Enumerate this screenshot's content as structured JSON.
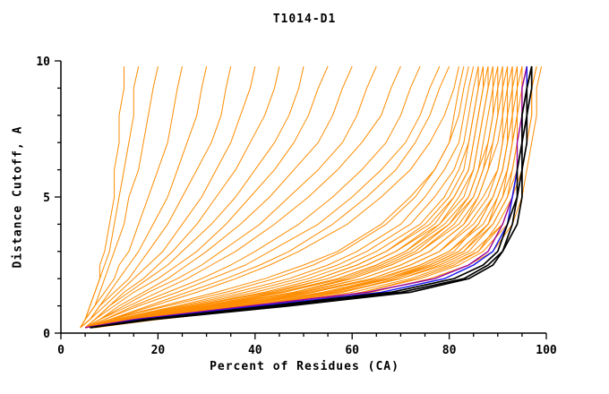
{
  "title": "T1014-D1",
  "axes": {
    "xlabel": "Percent of Residues (CA)",
    "ylabel": "Distance Cutoff, A"
  },
  "colors": {
    "predictions": "#FF8C00",
    "magenta_model": "#990099",
    "blue_model": "#1515EE",
    "best_model": "#000000",
    "axis": "#000000"
  },
  "chart_data": {
    "type": "line",
    "title": "T1014-D1",
    "xlabel": "Percent of Residues (CA)",
    "ylabel": "Distance Cutoff, A",
    "xlim": [
      0,
      100
    ],
    "ylim": [
      0,
      10
    ],
    "x_major_ticks": [
      0,
      20,
      40,
      60,
      80,
      100
    ],
    "x_minor_step": 5,
    "y_major_ticks": [
      0,
      5,
      10
    ],
    "y_minor_step": 1,
    "legend": "none",
    "grid": false,
    "cutoffs": [
      0.2,
      0.5,
      1.0,
      1.5,
      2.0,
      2.5,
      3.0,
      4.0,
      5.0,
      6.0,
      7.0,
      8.0,
      9.0,
      9.8
    ],
    "groups": [
      {
        "name": "prediction",
        "color": "#FF8C00",
        "width": 1,
        "curves": [
          [
            4,
            5,
            6,
            7,
            8,
            8,
            9,
            10,
            11,
            11,
            12,
            12,
            13,
            13
          ],
          [
            4,
            5,
            6,
            7,
            8,
            9,
            10,
            11,
            12,
            13,
            14,
            15,
            15,
            16
          ],
          [
            4,
            5,
            7,
            8,
            9,
            10,
            11,
            13,
            14,
            16,
            17,
            18,
            19,
            20
          ],
          [
            4,
            5,
            7,
            9,
            11,
            12,
            14,
            16,
            18,
            20,
            22,
            23,
            24,
            25
          ],
          [
            4,
            6,
            8,
            10,
            12,
            14,
            16,
            19,
            22,
            24,
            26,
            28,
            29,
            30
          ],
          [
            4,
            6,
            8,
            11,
            14,
            16,
            18,
            22,
            25,
            28,
            31,
            33,
            34,
            35
          ],
          [
            4,
            6,
            9,
            12,
            15,
            18,
            21,
            25,
            29,
            32,
            35,
            37,
            39,
            40
          ],
          [
            5,
            7,
            10,
            13,
            17,
            20,
            23,
            28,
            32,
            36,
            39,
            42,
            44,
            45
          ],
          [
            5,
            7,
            10,
            14,
            18,
            22,
            25,
            31,
            36,
            40,
            44,
            47,
            49,
            50
          ],
          [
            5,
            7,
            11,
            15,
            20,
            24,
            28,
            34,
            39,
            44,
            48,
            51,
            53,
            55
          ],
          [
            5,
            8,
            12,
            17,
            22,
            26,
            30,
            37,
            43,
            48,
            53,
            56,
            58,
            60
          ],
          [
            5,
            8,
            13,
            18,
            24,
            29,
            33,
            41,
            47,
            53,
            58,
            61,
            63,
            65
          ],
          [
            5,
            8,
            14,
            20,
            26,
            31,
            36,
            44,
            51,
            57,
            62,
            66,
            68,
            70
          ],
          [
            5,
            9,
            15,
            22,
            29,
            35,
            40,
            49,
            56,
            62,
            67,
            70,
            72,
            74
          ],
          [
            5,
            9,
            16,
            24,
            31,
            38,
            43,
            53,
            60,
            66,
            71,
            74,
            76,
            78
          ],
          [
            5,
            10,
            18,
            26,
            34,
            41,
            47,
            56,
            63,
            69,
            73,
            76,
            78,
            80
          ],
          [
            5,
            10,
            19,
            28,
            36,
            43,
            49,
            59,
            66,
            72,
            76,
            79,
            81,
            82
          ],
          [
            5,
            10,
            21,
            32,
            42,
            50,
            57,
            66,
            72,
            77,
            80,
            81,
            82,
            83
          ],
          [
            5,
            10,
            22,
            34,
            44,
            52,
            58,
            67,
            73,
            77,
            80,
            82,
            83,
            84
          ],
          [
            5,
            11,
            24,
            36,
            47,
            55,
            61,
            70,
            75,
            79,
            82,
            83,
            84,
            85
          ],
          [
            5,
            11,
            25,
            38,
            49,
            57,
            63,
            72,
            77,
            81,
            83,
            84,
            85,
            86
          ],
          [
            6,
            13,
            28,
            42,
            53,
            61,
            67,
            75,
            80,
            83,
            84,
            85,
            86,
            86
          ],
          [
            5,
            11,
            26,
            40,
            51,
            59,
            65,
            74,
            79,
            82,
            84,
            85,
            86,
            87
          ],
          [
            6,
            14,
            30,
            44,
            55,
            63,
            69,
            77,
            81,
            84,
            85,
            86,
            87,
            87
          ],
          [
            5,
            12,
            27,
            42,
            53,
            61,
            67,
            76,
            81,
            84,
            85,
            86,
            87,
            88
          ],
          [
            6,
            14,
            31,
            46,
            57,
            65,
            71,
            78,
            83,
            85,
            86,
            87,
            88,
            88
          ],
          [
            5,
            12,
            28,
            43,
            55,
            63,
            69,
            78,
            82,
            85,
            86,
            87,
            88,
            89
          ],
          [
            6,
            15,
            33,
            48,
            59,
            67,
            73,
            80,
            84,
            86,
            87,
            88,
            89,
            89
          ],
          [
            5,
            12,
            29,
            45,
            57,
            65,
            71,
            79,
            84,
            86,
            88,
            89,
            89,
            90
          ],
          [
            6,
            14,
            32,
            48,
            60,
            68,
            74,
            81,
            85,
            87,
            88,
            89,
            90,
            90
          ],
          [
            5,
            13,
            30,
            46,
            58,
            66,
            72,
            80,
            85,
            87,
            89,
            90,
            90,
            91
          ],
          [
            6,
            15,
            34,
            50,
            62,
            70,
            76,
            83,
            86,
            88,
            89,
            90,
            91,
            91
          ],
          [
            5,
            13,
            31,
            48,
            60,
            68,
            74,
            82,
            86,
            88,
            90,
            91,
            91,
            92
          ],
          [
            6,
            16,
            36,
            52,
            64,
            72,
            78,
            84,
            88,
            90,
            91,
            91,
            92,
            92
          ],
          [
            5,
            14,
            32,
            49,
            62,
            70,
            76,
            83,
            87,
            90,
            91,
            92,
            92,
            93
          ],
          [
            6,
            16,
            37,
            54,
            66,
            74,
            80,
            86,
            89,
            91,
            92,
            92,
            93,
            93
          ],
          [
            7,
            18,
            40,
            56,
            67,
            75,
            81,
            86,
            89,
            91,
            92,
            93,
            93,
            93
          ],
          [
            5,
            14,
            33,
            51,
            64,
            72,
            78,
            85,
            89,
            91,
            92,
            93,
            93,
            94
          ],
          [
            6,
            17,
            38,
            56,
            68,
            76,
            82,
            88,
            90,
            92,
            93,
            93,
            94,
            94
          ],
          [
            7,
            19,
            42,
            58,
            69,
            77,
            83,
            88,
            91,
            92,
            93,
            94,
            94,
            94
          ],
          [
            5,
            15,
            34,
            52,
            65,
            74,
            80,
            87,
            90,
            92,
            93,
            94,
            94,
            95
          ],
          [
            6,
            18,
            40,
            58,
            70,
            78,
            84,
            89,
            92,
            93,
            94,
            94,
            95,
            95
          ],
          [
            5,
            15,
            35,
            54,
            67,
            76,
            82,
            88,
            91,
            93,
            94,
            95,
            95,
            96
          ],
          [
            6,
            18,
            42,
            60,
            72,
            80,
            86,
            90,
            93,
            94,
            95,
            95,
            96,
            96
          ],
          [
            7,
            20,
            45,
            62,
            73,
            81,
            86,
            91,
            93,
            94,
            95,
            96,
            96,
            96
          ],
          [
            5,
            16,
            36,
            55,
            68,
            77,
            83,
            89,
            92,
            94,
            95,
            96,
            96,
            97
          ],
          [
            6,
            19,
            44,
            62,
            74,
            82,
            87,
            92,
            94,
            95,
            96,
            97,
            97,
            98
          ],
          [
            5,
            16,
            38,
            57,
            70,
            79,
            85,
            91,
            93,
            95,
            96,
            97,
            97,
            98
          ],
          [
            6,
            20,
            46,
            64,
            76,
            84,
            89,
            93,
            95,
            96,
            97,
            98,
            98,
            99
          ]
        ]
      },
      {
        "name": "magenta-model",
        "color": "#990099",
        "width": 1.4,
        "curves": [
          [
            5,
            15,
            39,
            63,
            77,
            84,
            88,
            91,
            93,
            94,
            94,
            95,
            95,
            96
          ]
        ]
      },
      {
        "name": "blue-model",
        "color": "#1515EE",
        "width": 1.4,
        "curves": [
          [
            6,
            16,
            41,
            66,
            79,
            85,
            89,
            92,
            93,
            94,
            95,
            95,
            96,
            96
          ]
        ]
      },
      {
        "name": "best-model",
        "color": "#000000",
        "width": 1.7,
        "curves": [
          [
            6,
            17,
            43,
            68,
            81,
            87,
            90,
            92,
            94,
            94,
            95,
            95,
            96,
            97
          ],
          [
            6,
            18,
            45,
            70,
            83,
            88,
            91,
            93,
            94,
            95,
            95,
            96,
            96,
            97
          ],
          [
            6,
            19,
            47,
            72,
            84,
            89,
            91,
            94,
            95,
            95,
            96,
            96,
            97,
            97
          ]
        ]
      }
    ]
  }
}
